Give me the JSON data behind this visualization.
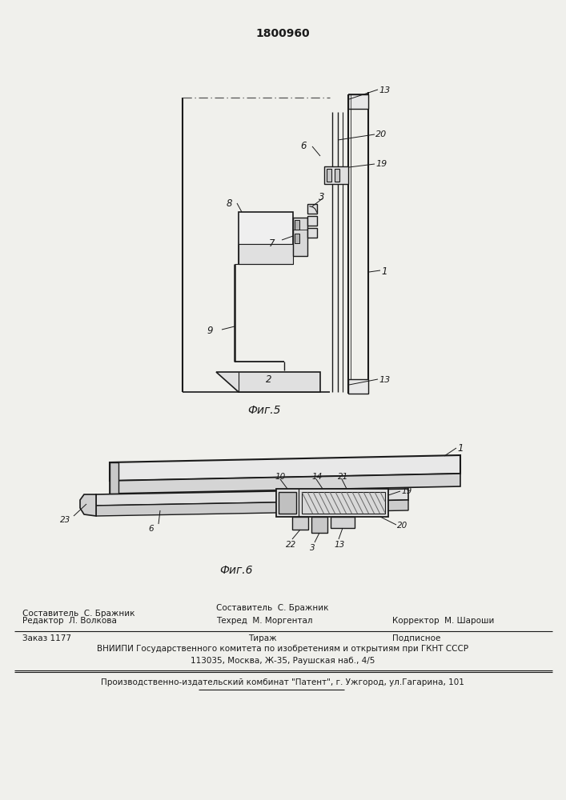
{
  "patent_number": "1800960",
  "fig5_caption": "Фиг.5",
  "fig6_caption": "Фиг.6",
  "bg_color": "#f0f0ec",
  "line_color": "#1a1a1a",
  "footer_editor": "Редактор  Л. Волкова",
  "footer_composer": "Составитель  С. Бражник",
  "footer_techred": "Техред  М. Моргентал",
  "footer_corrector": "Корректор  М. Шароши",
  "footer_order": "Заказ 1177",
  "footer_tirazh": "Тираж",
  "footer_podpisnoe": "Подписное",
  "footer_vnipi": "ВНИИПИ Государственного комитета по изобретениям и открытиям при ГКНТ СССР",
  "footer_address": "113035, Москва, Ж-35, Раушская наб., 4/5",
  "footer_patent": "Производственно-издательский комбинат \"Патент\", г. Ужгород, ул.Гагарина, 101"
}
